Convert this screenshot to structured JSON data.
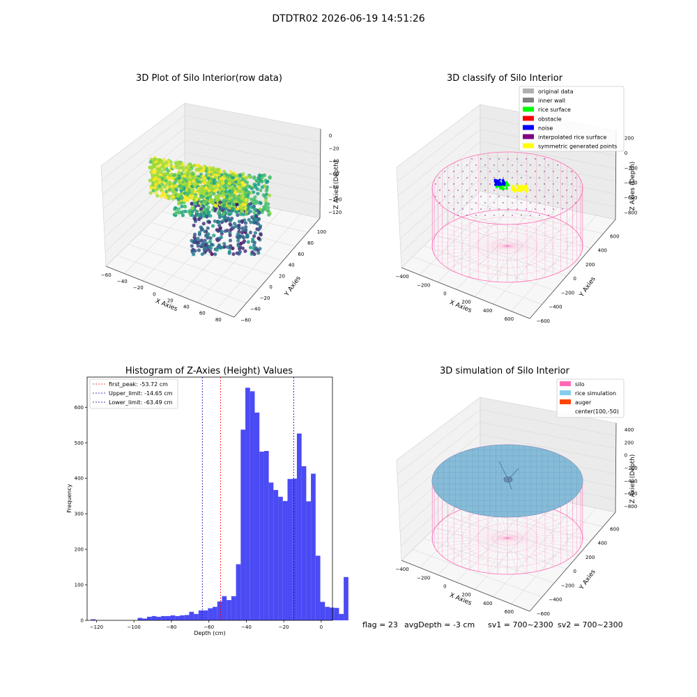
{
  "figure": {
    "suptitle": "DTDTR02 2026-06-19 14:51:26",
    "footer": {
      "flag": "flag = 23",
      "avg_depth": "avgDepth = -3 cm",
      "sv1": "sv1 = 700~2300",
      "sv2": "sv2 = 700~2300"
    }
  },
  "chart_data": [
    {
      "type": "scatter",
      "title": "3D Plot of Silo Interior(row data)",
      "xlabel": "X Axies",
      "ylabel": "Y Axies",
      "zlabel": "Z Axies (Depth)",
      "x_ticks": [
        "−60",
        "−40",
        "−20",
        "0",
        "20",
        "40",
        "60",
        "80"
      ],
      "y_ticks": [
        "−60",
        "−40",
        "−20",
        "0",
        "20",
        "40",
        "60",
        "80",
        "100"
      ],
      "z_ticks": [
        "0",
        "−20",
        "−40",
        "−60",
        "−80",
        "−100",
        "−120"
      ],
      "xlim": [
        -60,
        80
      ],
      "ylim": [
        -60,
        100
      ],
      "zlim": [
        -130,
        0
      ],
      "colormap": "viridis",
      "grid": true
    },
    {
      "type": "scatter",
      "title": "3D classify of Silo Interior",
      "xlabel": "X Axies",
      "ylabel": "Y Axies",
      "zlabel": "Z Axies (Depth)",
      "x_ticks": [
        "−400",
        "−200",
        "0",
        "200",
        "400",
        "600"
      ],
      "y_ticks": [
        "−600",
        "−400",
        "−200",
        "0",
        "200",
        "400",
        "600"
      ],
      "z_ticks": [
        "200",
        "0",
        "−200",
        "−400",
        "−600",
        "−800"
      ],
      "legend": [
        {
          "label": "original data",
          "color": "#b0b0b0"
        },
        {
          "label": "inner wall",
          "color": "#808080"
        },
        {
          "label": "rice surface",
          "color": "#00ff00"
        },
        {
          "label": "obstacle",
          "color": "#ff0000"
        },
        {
          "label": "noise",
          "color": "#0000ff"
        },
        {
          "label": "interpolated rice surface",
          "color": "#800080"
        },
        {
          "label": "symmetric generated points",
          "color": "#ffff00"
        }
      ],
      "legend_loc": "upper right",
      "wire_color": "#ff69b4",
      "grid": true
    },
    {
      "type": "bar",
      "title": "Histogram of Z-Axies (Height) Values",
      "xlabel": "Depth (cm)",
      "ylabel": "Frequency",
      "bin_width": 2.5,
      "bin_start": -123,
      "values": [
        3,
        0,
        0,
        0,
        0,
        0,
        0,
        0,
        0,
        0,
        7,
        5,
        10,
        12,
        10,
        12,
        12,
        14,
        12,
        14,
        15,
        24,
        18,
        28,
        28,
        34,
        38,
        53,
        68,
        57,
        68,
        158,
        537,
        655,
        645,
        585,
        475,
        477,
        388,
        367,
        348,
        336,
        398,
        399,
        526,
        434,
        335,
        413,
        182,
        52,
        38,
        36,
        35,
        18,
        122
      ],
      "xlim": [
        -125,
        6
      ],
      "ylim": [
        0,
        685
      ],
      "x_ticks": [
        -120,
        -100,
        -80,
        -60,
        -40,
        -20,
        0
      ],
      "y_ticks": [
        0,
        100,
        200,
        300,
        400,
        500,
        600
      ],
      "bar_color": "#4b4bf5",
      "vlines": [
        {
          "label": "first_peak: -53.72 cm",
          "value": -53.72,
          "color": "#ff0000"
        },
        {
          "label": "Upper_limit: -14.65 cm",
          "value": -14.65,
          "color": "#0000aa"
        },
        {
          "label": "Lower_limit: -63.49 cm",
          "value": -63.49,
          "color": "#0000aa"
        }
      ],
      "legend_loc": "upper left"
    },
    {
      "type": "scatter",
      "title": "3D simulation of Silo Interior",
      "xlabel": "X Axies",
      "ylabel": "Y Axies",
      "zlabel": "Z Axies (Depth)",
      "x_ticks": [
        "−400",
        "−200",
        "0",
        "200",
        "400",
        "600"
      ],
      "y_ticks": [
        "−600",
        "−400",
        "−200",
        "0",
        "200",
        "400",
        "600"
      ],
      "z_ticks": [
        "400",
        "200",
        "0",
        "−200",
        "−400",
        "−600",
        "−800"
      ],
      "legend": [
        {
          "label": "silo",
          "color": "#ff69b4"
        },
        {
          "label": "rice simulation",
          "color": "#87ceeb"
        },
        {
          "label": "auger",
          "color": "#ff4500"
        },
        {
          "label": "center(100,-50)",
          "color": ""
        }
      ],
      "legend_loc": "upper right",
      "surface_color": "#87bcd8",
      "grid": true
    }
  ]
}
